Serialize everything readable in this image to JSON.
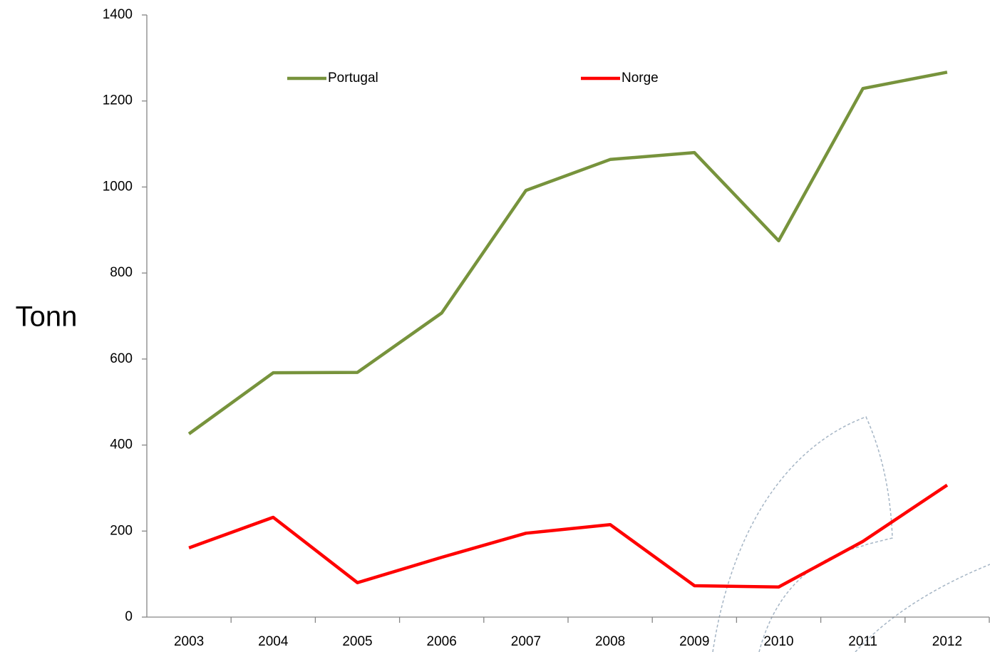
{
  "chart_data": {
    "type": "line",
    "y_label": "Tonn",
    "categories": [
      "2003",
      "2004",
      "2005",
      "2006",
      "2007",
      "2008",
      "2009",
      "2010",
      "2011",
      "2012"
    ],
    "series": [
      {
        "name": "Portugal",
        "color": "#77933c",
        "values": [
          426,
          568,
          569,
          707,
          992,
          1064,
          1080,
          875,
          1229,
          1267
        ]
      },
      {
        "name": "Norge",
        "color": "#ff0000",
        "values": [
          161,
          232,
          80,
          139,
          195,
          215,
          73,
          70,
          176,
          307
        ]
      }
    ],
    "ylim": [
      0,
      1400
    ],
    "yticks": [
      0,
      200,
      400,
      600,
      800,
      1000,
      1200,
      1400
    ],
    "grid": false,
    "legend": "top"
  }
}
